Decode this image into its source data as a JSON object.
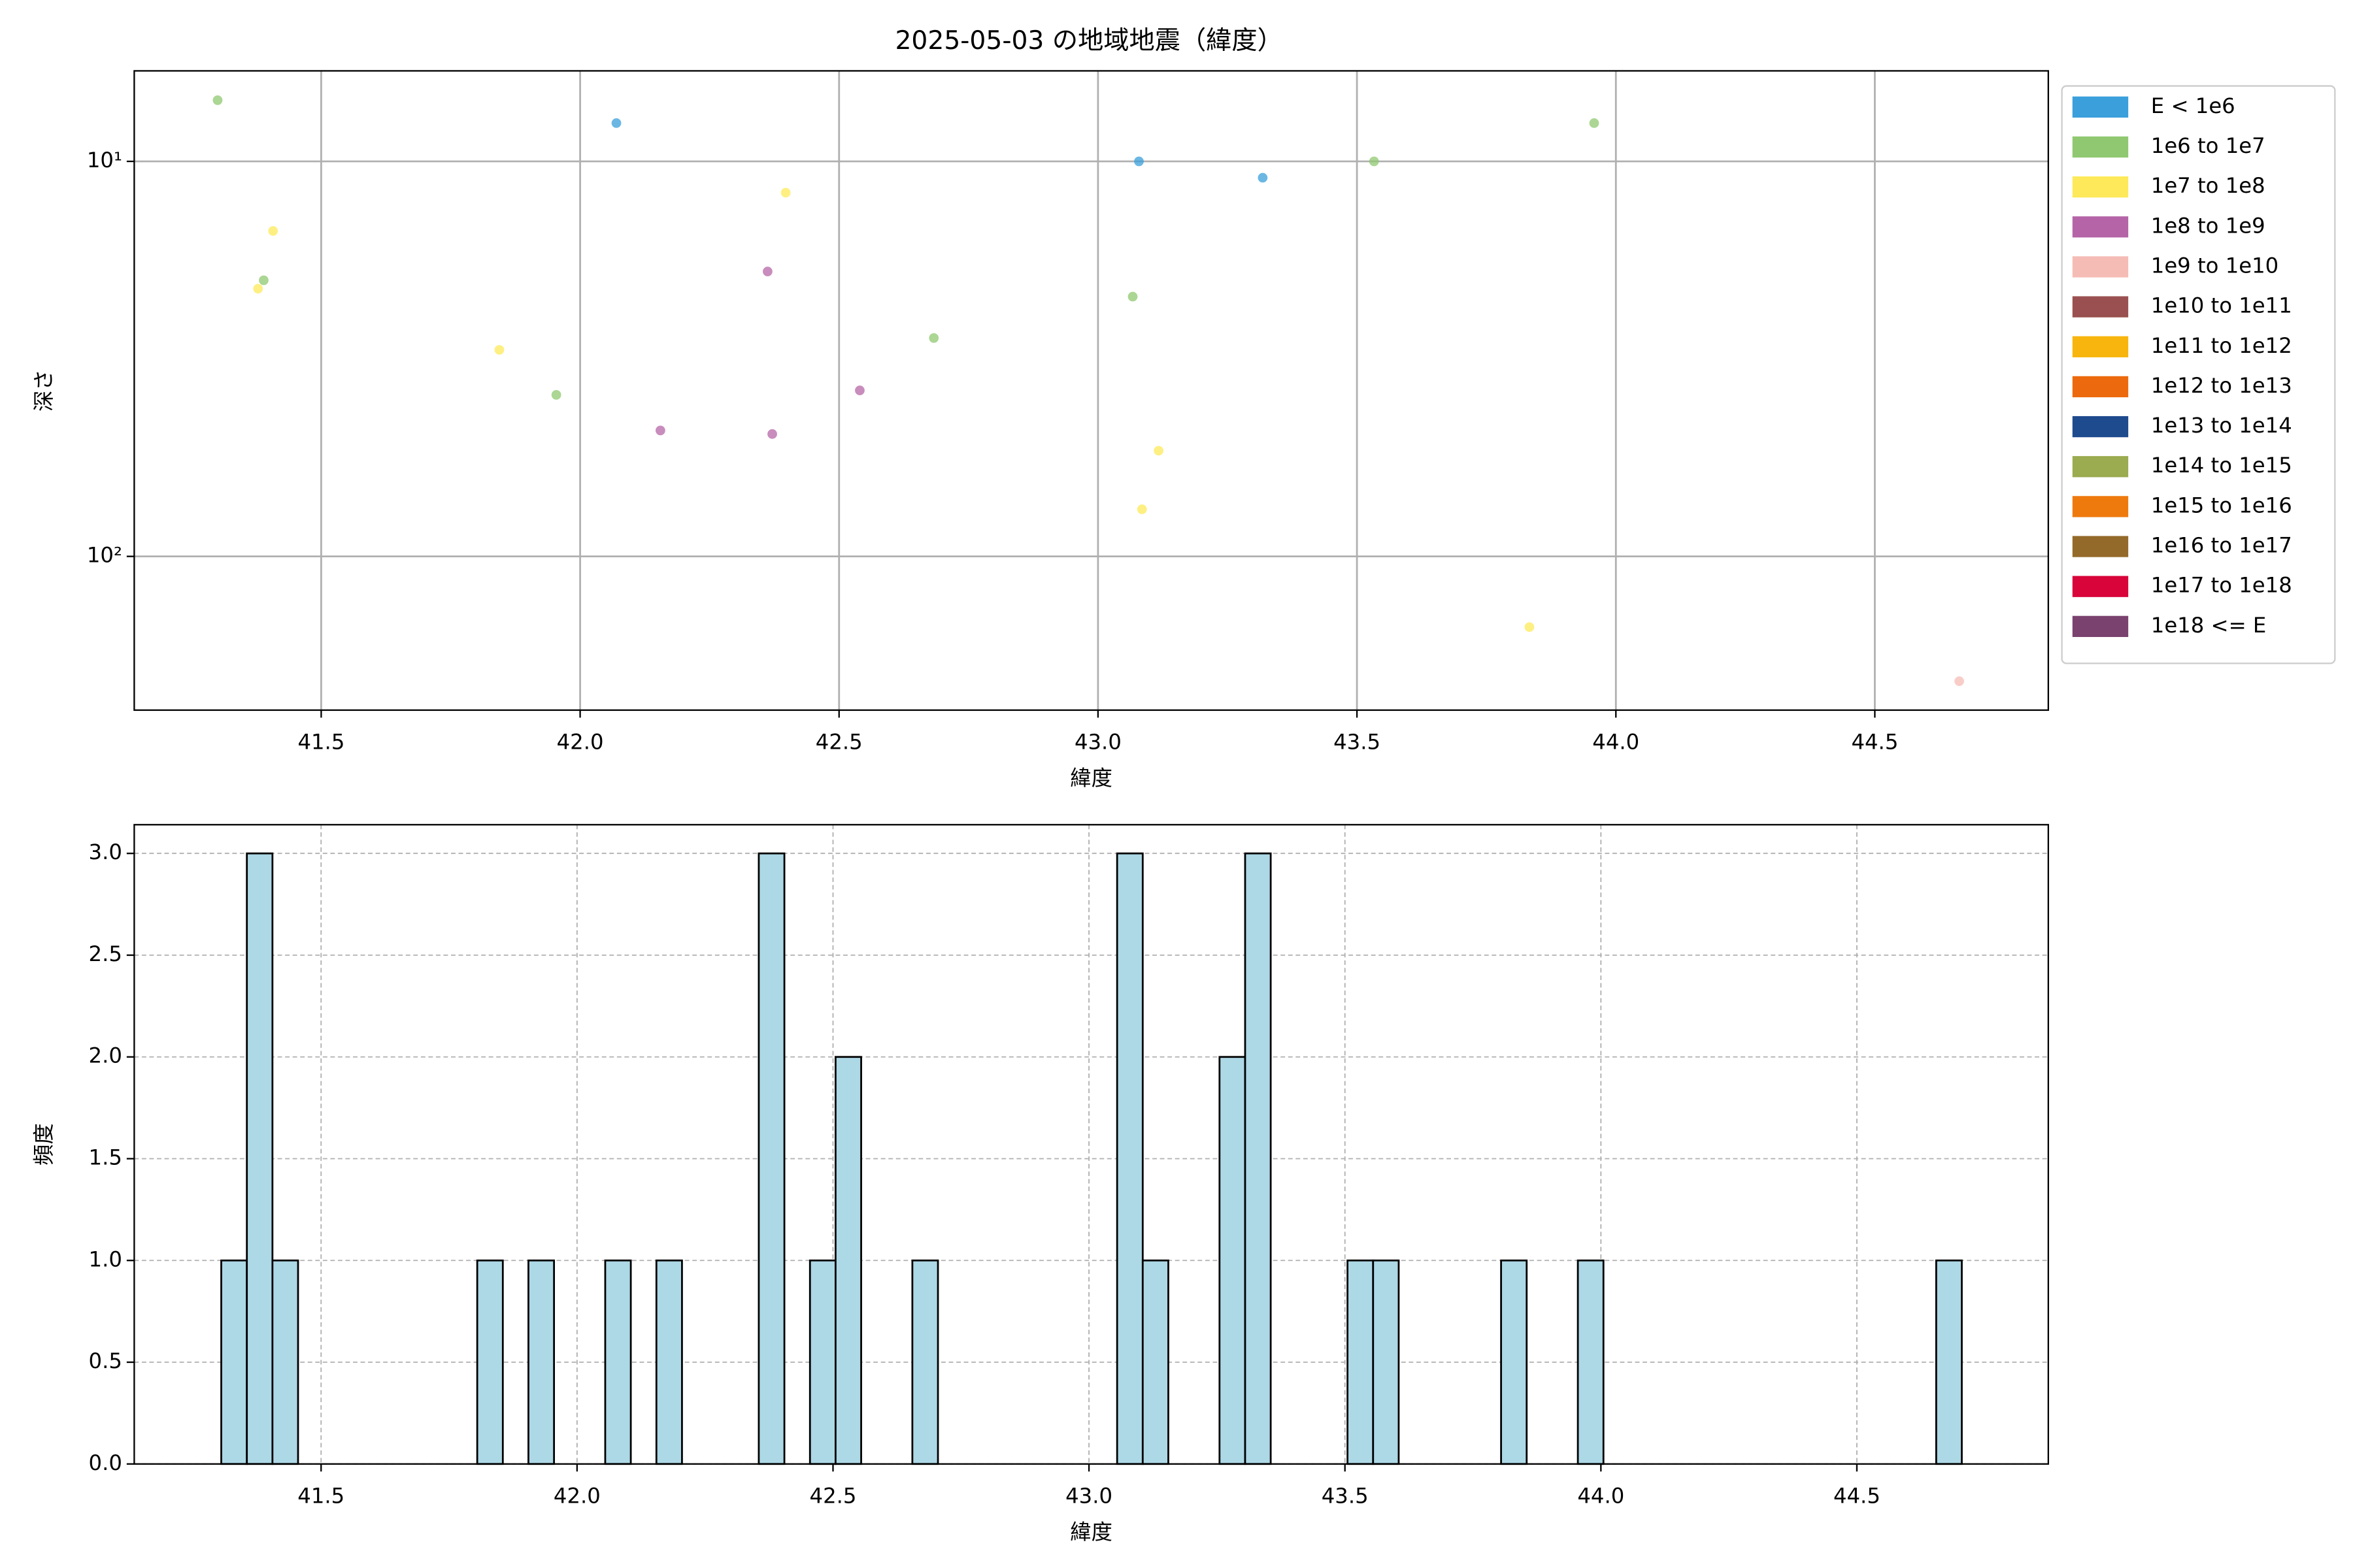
{
  "chart_data": [
    {
      "type": "scatter",
      "title": "2025-05-03 の地域地震（緯度）",
      "xlabel": "緯度",
      "ylabel": "深さ",
      "xlim": [
        41.139,
        44.835
      ],
      "xticks": [
        {
          "value": 41.5,
          "label": "41.5"
        },
        {
          "value": 42.0,
          "label": "42.0"
        },
        {
          "value": 42.5,
          "label": "42.5"
        },
        {
          "value": 43.0,
          "label": "43.0"
        },
        {
          "value": 43.5,
          "label": "43.5"
        },
        {
          "value": 44.0,
          "label": "44.0"
        },
        {
          "value": 44.5,
          "label": "44.5"
        }
      ],
      "yscale": "log",
      "ylim": [
        245,
        5.9
      ],
      "yticks": [
        {
          "value": 10,
          "label": "10¹"
        },
        {
          "value": 100,
          "label": "10²"
        }
      ],
      "grid": true,
      "grid_style": "solid",
      "legend": "outside upper right",
      "series": [
        {
          "name": "E < 1e6",
          "color": "#3a9fdb",
          "x": [
            42.07,
            43.079,
            43.318
          ],
          "values": [
            8.0,
            10,
            11.0
          ]
        },
        {
          "name": "1e6 to 1e7",
          "color": "#8fc870",
          "x": [
            41.3,
            43.533,
            43.958,
            41.389,
            43.067,
            42.683,
            41.954
          ],
          "values": [
            7.0,
            10,
            8.0,
            20,
            22,
            28,
            39
          ]
        },
        {
          "name": "1e7 to 1e8",
          "color": "#fde95a",
          "x": [
            41.407,
            42.397,
            41.378,
            41.844,
            43.117,
            43.085,
            43.833
          ],
          "values": [
            15,
            12,
            21,
            30,
            54,
            76,
            151
          ]
        },
        {
          "name": "1e8 to 1e9",
          "color": "#b565a7",
          "x": [
            42.362,
            42.54,
            42.155,
            42.371
          ],
          "values": [
            19,
            38,
            48,
            49
          ]
        },
        {
          "name": "1e9 to 1e10",
          "color": "#f5bcb5",
          "x": [
            44.663
          ],
          "values": [
            207
          ]
        },
        {
          "name": "1e10 to 1e11",
          "color": "#9a5050",
          "x": [],
          "values": []
        },
        {
          "name": "1e11 to 1e12",
          "color": "#f7b50d",
          "x": [],
          "values": []
        },
        {
          "name": "1e12 to 1e13",
          "color": "#ec6a0d",
          "x": [],
          "values": []
        },
        {
          "name": "1e13 to 1e14",
          "color": "#1e4a8e",
          "x": [],
          "values": []
        },
        {
          "name": "1e14 to 1e15",
          "color": "#9aab50",
          "x": [],
          "values": []
        },
        {
          "name": "1e15 to 1e16",
          "color": "#ee7a0e",
          "x": [],
          "values": []
        },
        {
          "name": "1e16 to 1e17",
          "color": "#946a2a",
          "x": [],
          "values": []
        },
        {
          "name": "1e17 to 1e18",
          "color": "#d8043a",
          "x": [],
          "values": []
        },
        {
          "name": "1e18 <= E",
          "color": "#7a426e",
          "x": [],
          "values": []
        }
      ]
    },
    {
      "type": "histogram",
      "xlabel": "緯度",
      "ylabel": "頻度",
      "color": "#add8e6",
      "edgecolor": "#000000",
      "xlim": [
        41.135,
        44.874
      ],
      "xticks": [
        {
          "value": 41.5,
          "label": "41.5"
        },
        {
          "value": 42.0,
          "label": "42.0"
        },
        {
          "value": 42.5,
          "label": "42.5"
        },
        {
          "value": 43.0,
          "label": "43.0"
        },
        {
          "value": 43.5,
          "label": "43.5"
        },
        {
          "value": 44.0,
          "label": "44.0"
        },
        {
          "value": 44.5,
          "label": "44.5"
        }
      ],
      "ylim": [
        0,
        3.141
      ],
      "yticks": [
        {
          "value": 0,
          "label": "0.0"
        },
        {
          "value": 0.5,
          "label": "0.5"
        },
        {
          "value": 1,
          "label": "1.0"
        },
        {
          "value": 1.5,
          "label": "1.5"
        },
        {
          "value": 2,
          "label": "2.0"
        },
        {
          "value": 2.5,
          "label": "2.5"
        },
        {
          "value": 3,
          "label": "3.0"
        }
      ],
      "grid": true,
      "grid_style": "dashed",
      "bins": [
        41.305,
        41.355,
        41.405,
        41.455,
        41.505,
        41.555,
        41.605,
        41.655,
        41.705,
        41.755,
        41.805,
        41.855,
        41.905,
        41.955,
        42.005,
        42.055,
        42.105,
        42.155,
        42.205,
        42.255,
        42.305,
        42.355,
        42.405,
        42.455,
        42.505,
        42.555,
        42.605,
        42.655,
        42.705,
        42.755,
        42.805,
        42.855,
        42.905,
        42.955,
        43.005,
        43.055,
        43.105,
        43.155,
        43.205,
        43.255,
        43.305,
        43.355,
        43.405,
        43.455,
        43.505,
        43.555,
        43.605,
        43.655,
        43.705,
        43.755,
        43.805,
        43.855,
        43.905,
        43.955,
        44.005,
        44.055,
        44.105,
        44.155,
        44.205,
        44.255,
        44.305,
        44.355,
        44.405,
        44.455,
        44.505,
        44.555,
        44.605,
        44.655,
        44.705
      ],
      "values": [
        1,
        3,
        1,
        0,
        0,
        0,
        0,
        0,
        0,
        0,
        1,
        0,
        1,
        0,
        0,
        1,
        0,
        1,
        0,
        0,
        0,
        3,
        0,
        1,
        2,
        0,
        0,
        1,
        0,
        0,
        0,
        0,
        0,
        0,
        0,
        3,
        1,
        0,
        0,
        2,
        3,
        0,
        0,
        0,
        1,
        1,
        0,
        0,
        0,
        0,
        1,
        0,
        0,
        1,
        0,
        0,
        0,
        0,
        0,
        0,
        0,
        0,
        0,
        0,
        0,
        0,
        0,
        1
      ]
    }
  ]
}
